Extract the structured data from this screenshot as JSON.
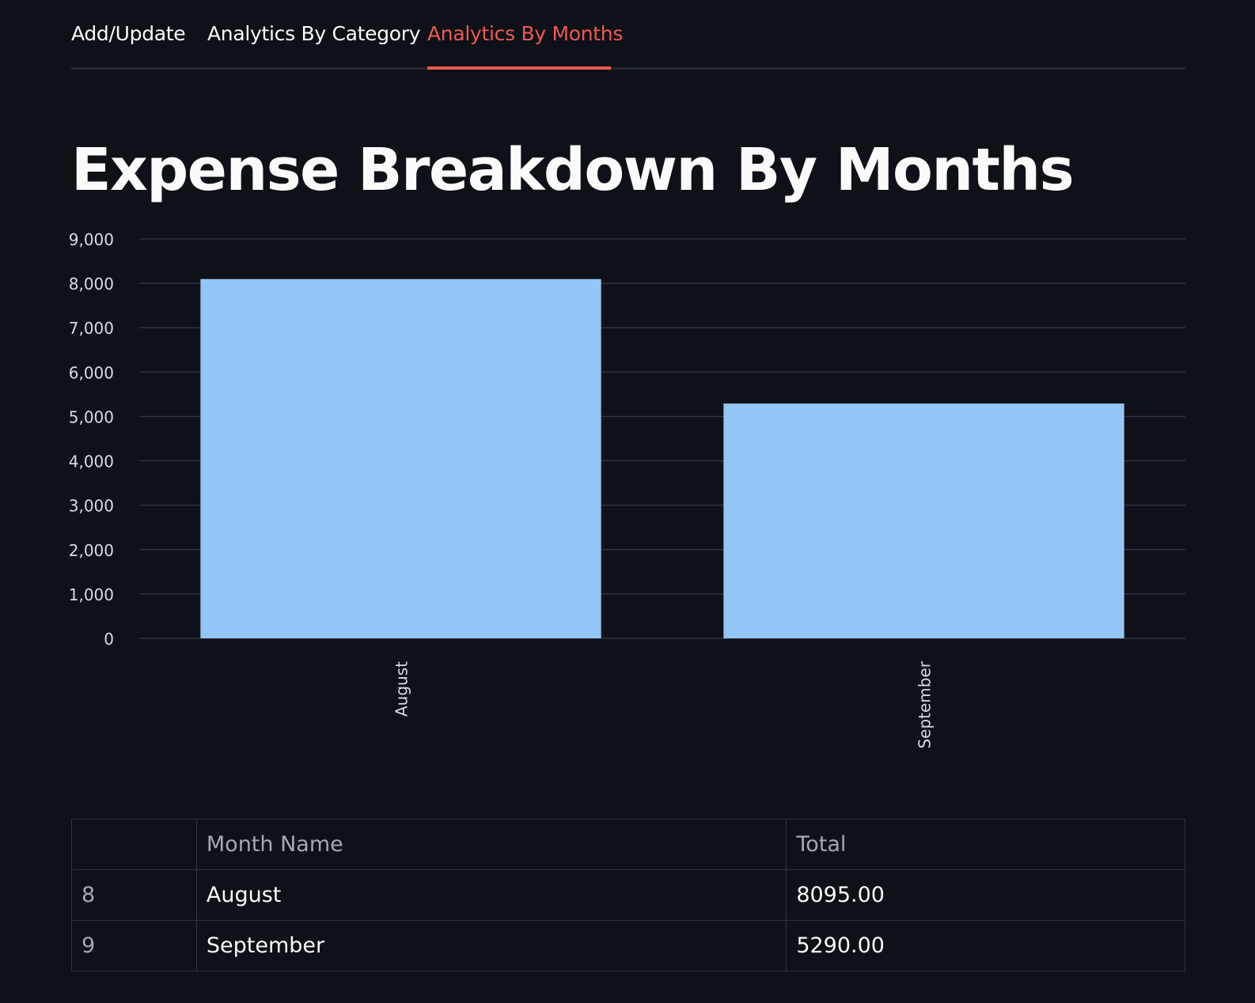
{
  "tabs": [
    {
      "label": "Add/Update",
      "active": false
    },
    {
      "label": "Analytics By Category",
      "active": false
    },
    {
      "label": "Analytics By Months",
      "active": true
    }
  ],
  "page_title": "Expense Breakdown By Months",
  "colors": {
    "background": "#0e1117",
    "accent": "#ef5a4f",
    "bar": "#93c6f7",
    "grid": "#31333f",
    "text": "#fafafa",
    "muted": "#a3a8b4"
  },
  "chart_data": {
    "type": "bar",
    "categories": [
      "August",
      "September"
    ],
    "values": [
      8095,
      5290
    ],
    "title": "",
    "xlabel": "",
    "ylabel": "",
    "ylim": [
      0,
      9000
    ],
    "yticks": [
      "0",
      "1,000",
      "2,000",
      "3,000",
      "4,000",
      "5,000",
      "6,000",
      "7,000",
      "8,000",
      "9,000"
    ],
    "grid": true,
    "x_tick_rotation": "vertical"
  },
  "table": {
    "headers": [
      "",
      "Month Name",
      "Total"
    ],
    "rows": [
      {
        "index": "8",
        "month": "August",
        "total": "8095.00"
      },
      {
        "index": "9",
        "month": "September",
        "total": "5290.00"
      }
    ]
  }
}
